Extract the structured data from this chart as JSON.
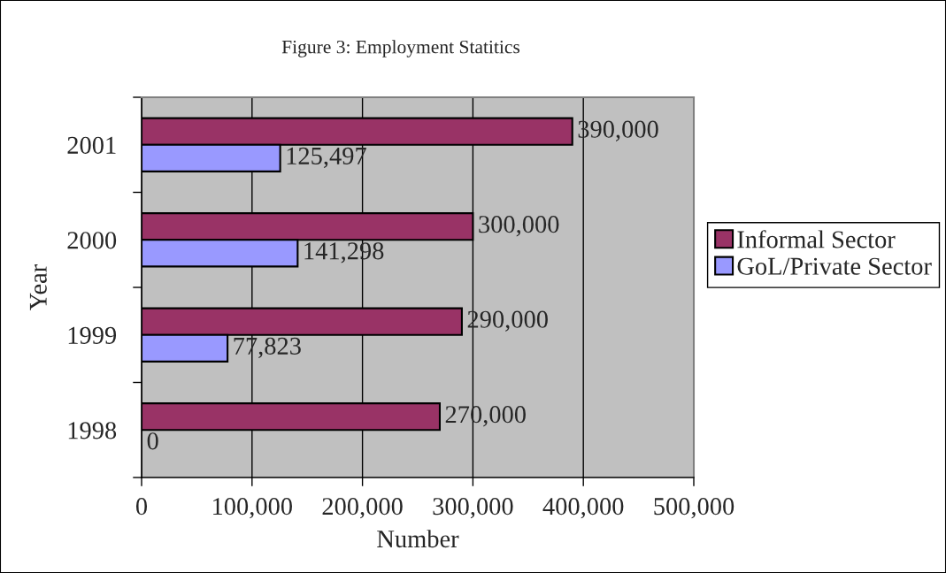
{
  "chart_data": {
    "type": "bar",
    "orientation": "horizontal",
    "title": "Figure 3: Employment Statitics",
    "xlabel": "Number",
    "ylabel": "Year",
    "categories": [
      "2001",
      "2000",
      "1999",
      "1998"
    ],
    "series": [
      {
        "name": "Informal Sector",
        "color": "#993366",
        "values": [
          390000,
          300000,
          290000,
          270000
        ],
        "value_labels": [
          "390,000",
          "300,000",
          "290,000",
          "270,000"
        ]
      },
      {
        "name": "GoL/Private Sector",
        "color": "#9999ff",
        "values": [
          125497,
          141298,
          77823,
          0
        ],
        "value_labels": [
          "125,497",
          "141,298",
          "77,823",
          "0"
        ]
      }
    ],
    "xlim": [
      0,
      500000
    ],
    "xticks": [
      0,
      {
        "value": 100000,
        "label": "100,000"
      },
      {
        "value": 200000,
        "label": "200,000"
      },
      {
        "value": 300000,
        "label": "300,000"
      },
      {
        "value": 400000,
        "label": "400,000"
      },
      {
        "value": 500000,
        "label": "500,000"
      }
    ],
    "grid": "x",
    "legend": "right"
  }
}
